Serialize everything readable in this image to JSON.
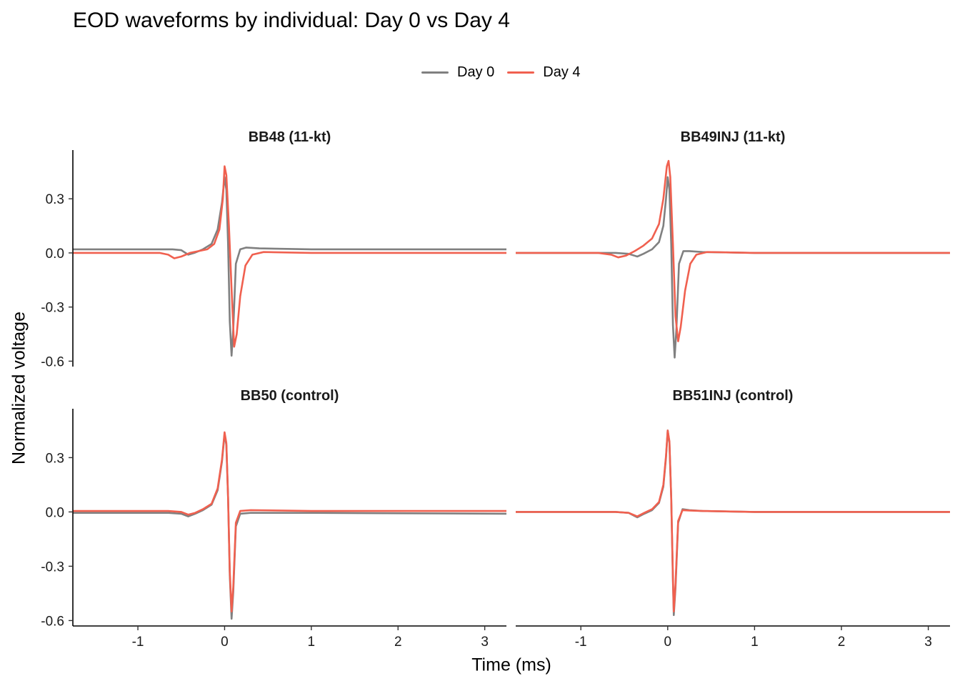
{
  "chart_data": {
    "type": "line",
    "title": "EOD waveforms by individual: Day 0 vs Day 4",
    "xlabel": "Time (ms)",
    "ylabel": "Normalized voltage",
    "xlim": [
      -1.75,
      3.25
    ],
    "x_ticks": [
      -1,
      0,
      1,
      2,
      3
    ],
    "x_tick_labels": [
      "-1",
      "0",
      "1",
      "2",
      "3"
    ],
    "y_ticks": [
      -0.6,
      -0.3,
      0.0,
      0.3
    ],
    "y_tick_labels": [
      "-0.6",
      "-0.3",
      "0.0",
      "0.3"
    ],
    "legend_position": "top",
    "grid": false,
    "series_styles": [
      {
        "name": "Day 0",
        "color": "#808080"
      },
      {
        "name": "Day 4",
        "color": "#f0604f"
      }
    ],
    "panels": [
      {
        "label": "BB48 (11-kt)",
        "ylim": [
          -0.63,
          0.57
        ],
        "series": [
          {
            "name": "Day 0",
            "points": [
              [
                -1.75,
                0.02
              ],
              [
                -0.6,
                0.02
              ],
              [
                -0.5,
                0.015
              ],
              [
                -0.42,
                -0.01
              ],
              [
                -0.35,
                0.0
              ],
              [
                -0.25,
                0.02
              ],
              [
                -0.15,
                0.05
              ],
              [
                -0.08,
                0.13
              ],
              [
                -0.03,
                0.28
              ],
              [
                0.0,
                0.42
              ],
              [
                0.02,
                0.35
              ],
              [
                0.04,
                0.05
              ],
              [
                0.06,
                -0.38
              ],
              [
                0.08,
                -0.57
              ],
              [
                0.1,
                -0.42
              ],
              [
                0.13,
                -0.06
              ],
              [
                0.18,
                0.02
              ],
              [
                0.25,
                0.03
              ],
              [
                0.4,
                0.025
              ],
              [
                1.0,
                0.02
              ],
              [
                3.25,
                0.02
              ]
            ]
          },
          {
            "name": "Day 4",
            "points": [
              [
                -1.75,
                0.0
              ],
              [
                -0.75,
                0.0
              ],
              [
                -0.65,
                -0.01
              ],
              [
                -0.58,
                -0.03
              ],
              [
                -0.5,
                -0.02
              ],
              [
                -0.4,
                0.0
              ],
              [
                -0.3,
                0.01
              ],
              [
                -0.2,
                0.02
              ],
              [
                -0.12,
                0.05
              ],
              [
                -0.06,
                0.13
              ],
              [
                -0.02,
                0.3
              ],
              [
                0.0,
                0.48
              ],
              [
                0.02,
                0.43
              ],
              [
                0.05,
                0.15
              ],
              [
                0.08,
                -0.2
              ],
              [
                0.11,
                -0.52
              ],
              [
                0.14,
                -0.45
              ],
              [
                0.18,
                -0.24
              ],
              [
                0.24,
                -0.07
              ],
              [
                0.32,
                -0.01
              ],
              [
                0.45,
                0.005
              ],
              [
                1.0,
                0.0
              ],
              [
                3.25,
                0.0
              ]
            ]
          }
        ]
      },
      {
        "label": "BB49INJ (11-kt)",
        "ylim": [
          -0.63,
          0.57
        ],
        "series": [
          {
            "name": "Day 0",
            "points": [
              [
                -1.75,
                0.0
              ],
              [
                -0.6,
                0.0
              ],
              [
                -0.45,
                -0.005
              ],
              [
                -0.35,
                -0.02
              ],
              [
                -0.28,
                -0.005
              ],
              [
                -0.18,
                0.02
              ],
              [
                -0.1,
                0.06
              ],
              [
                -0.05,
                0.15
              ],
              [
                -0.02,
                0.3
              ],
              [
                0.0,
                0.42
              ],
              [
                0.02,
                0.35
              ],
              [
                0.04,
                0.05
              ],
              [
                0.06,
                -0.4
              ],
              [
                0.08,
                -0.58
              ],
              [
                0.1,
                -0.42
              ],
              [
                0.13,
                -0.06
              ],
              [
                0.18,
                0.01
              ],
              [
                0.25,
                0.01
              ],
              [
                0.4,
                0.005
              ],
              [
                1.0,
                0.0
              ],
              [
                3.25,
                0.0
              ]
            ]
          },
          {
            "name": "Day 4",
            "points": [
              [
                -1.75,
                0.0
              ],
              [
                -0.8,
                0.0
              ],
              [
                -0.65,
                -0.01
              ],
              [
                -0.57,
                -0.025
              ],
              [
                -0.48,
                -0.015
              ],
              [
                -0.38,
                0.01
              ],
              [
                -0.28,
                0.04
              ],
              [
                -0.18,
                0.08
              ],
              [
                -0.1,
                0.16
              ],
              [
                -0.05,
                0.3
              ],
              [
                -0.01,
                0.48
              ],
              [
                0.01,
                0.51
              ],
              [
                0.03,
                0.42
              ],
              [
                0.06,
                0.05
              ],
              [
                0.09,
                -0.35
              ],
              [
                0.12,
                -0.49
              ],
              [
                0.15,
                -0.41
              ],
              [
                0.2,
                -0.21
              ],
              [
                0.26,
                -0.06
              ],
              [
                0.33,
                -0.01
              ],
              [
                0.45,
                0.005
              ],
              [
                1.0,
                0.0
              ],
              [
                3.25,
                0.0
              ]
            ]
          }
        ]
      },
      {
        "label": "BB50 (control)",
        "ylim": [
          -0.63,
          0.57
        ],
        "series": [
          {
            "name": "Day 0",
            "points": [
              [
                -1.75,
                -0.005
              ],
              [
                -0.65,
                -0.005
              ],
              [
                -0.5,
                -0.01
              ],
              [
                -0.42,
                -0.025
              ],
              [
                -0.34,
                -0.01
              ],
              [
                -0.25,
                0.01
              ],
              [
                -0.15,
                0.04
              ],
              [
                -0.08,
                0.12
              ],
              [
                -0.03,
                0.28
              ],
              [
                0.0,
                0.43
              ],
              [
                0.02,
                0.37
              ],
              [
                0.04,
                0.08
              ],
              [
                0.06,
                -0.35
              ],
              [
                0.08,
                -0.59
              ],
              [
                0.1,
                -0.44
              ],
              [
                0.13,
                -0.08
              ],
              [
                0.18,
                -0.01
              ],
              [
                0.3,
                -0.005
              ],
              [
                1.0,
                -0.005
              ],
              [
                3.25,
                -0.01
              ]
            ]
          },
          {
            "name": "Day 4",
            "points": [
              [
                -1.75,
                0.005
              ],
              [
                -0.65,
                0.005
              ],
              [
                -0.5,
                0.0
              ],
              [
                -0.42,
                -0.015
              ],
              [
                -0.34,
                -0.005
              ],
              [
                -0.25,
                0.015
              ],
              [
                -0.15,
                0.045
              ],
              [
                -0.08,
                0.13
              ],
              [
                -0.03,
                0.29
              ],
              [
                0.0,
                0.44
              ],
              [
                0.02,
                0.38
              ],
              [
                0.04,
                0.08
              ],
              [
                0.06,
                -0.33
              ],
              [
                0.08,
                -0.55
              ],
              [
                0.1,
                -0.41
              ],
              [
                0.13,
                -0.06
              ],
              [
                0.18,
                0.005
              ],
              [
                0.3,
                0.01
              ],
              [
                1.0,
                0.005
              ],
              [
                3.25,
                0.005
              ]
            ]
          }
        ]
      },
      {
        "label": "BB51INJ (control)",
        "ylim": [
          -0.63,
          0.57
        ],
        "series": [
          {
            "name": "Day 0",
            "points": [
              [
                -1.75,
                0.0
              ],
              [
                -0.6,
                0.0
              ],
              [
                -0.45,
                -0.005
              ],
              [
                -0.35,
                -0.03
              ],
              [
                -0.27,
                -0.01
              ],
              [
                -0.18,
                0.01
              ],
              [
                -0.1,
                0.05
              ],
              [
                -0.05,
                0.14
              ],
              [
                -0.02,
                0.3
              ],
              [
                0.0,
                0.45
              ],
              [
                0.02,
                0.38
              ],
              [
                0.04,
                0.08
              ],
              [
                0.06,
                -0.38
              ],
              [
                0.07,
                -0.57
              ],
              [
                0.09,
                -0.42
              ],
              [
                0.12,
                -0.06
              ],
              [
                0.17,
                0.015
              ],
              [
                0.25,
                0.01
              ],
              [
                0.4,
                0.005
              ],
              [
                1.0,
                0.0
              ],
              [
                3.25,
                0.0
              ]
            ]
          },
          {
            "name": "Day 4",
            "points": [
              [
                -1.75,
                0.0
              ],
              [
                -0.6,
                0.0
              ],
              [
                -0.45,
                -0.005
              ],
              [
                -0.35,
                -0.025
              ],
              [
                -0.27,
                -0.005
              ],
              [
                -0.18,
                0.015
              ],
              [
                -0.1,
                0.055
              ],
              [
                -0.05,
                0.15
              ],
              [
                -0.02,
                0.31
              ],
              [
                0.0,
                0.45
              ],
              [
                0.02,
                0.39
              ],
              [
                0.04,
                0.08
              ],
              [
                0.06,
                -0.36
              ],
              [
                0.07,
                -0.55
              ],
              [
                0.09,
                -0.4
              ],
              [
                0.12,
                -0.05
              ],
              [
                0.17,
                0.01
              ],
              [
                0.25,
                0.008
              ],
              [
                0.4,
                0.005
              ],
              [
                1.0,
                0.0
              ],
              [
                3.25,
                0.0
              ]
            ]
          }
        ]
      }
    ]
  }
}
